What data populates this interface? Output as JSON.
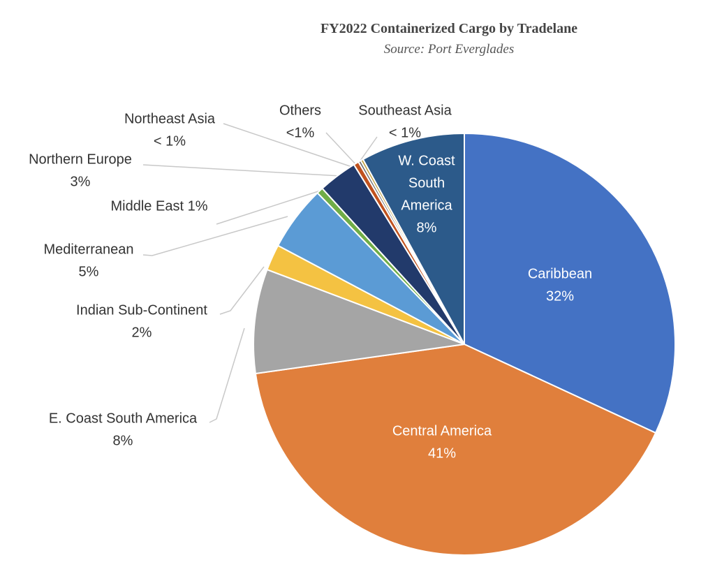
{
  "chart_data": {
    "type": "pie",
    "title": "FY2022 Containerized Cargo by Tradelane",
    "subtitle": "Source: Port Everglades",
    "slices": [
      {
        "name": "Caribbean",
        "value": 32,
        "label": "32%",
        "color": "#4472C4",
        "label_position": "inside"
      },
      {
        "name": "Central America",
        "value": 41,
        "label": "41%",
        "color": "#E07F3C",
        "label_position": "inside"
      },
      {
        "name": "E. Coast South America",
        "value": 8,
        "label": "8%",
        "color": "#A5A5A5",
        "label_position": "outside"
      },
      {
        "name": "Indian Sub-Continent",
        "value": 2,
        "label": "2%",
        "color": "#F4C242",
        "label_position": "outside"
      },
      {
        "name": "Mediterranean",
        "value": 5,
        "label": "5%",
        "color": "#5B9BD5",
        "label_position": "outside"
      },
      {
        "name": "Middle East",
        "value": 0.5,
        "label": "1%",
        "color": "#70AD47",
        "label_position": "outside"
      },
      {
        "name": "Northern Europe",
        "value": 3,
        "label": "3%",
        "color": "#223A6B",
        "label_position": "outside"
      },
      {
        "name": "Northeast Asia",
        "value": 0.4,
        "label": "< 1%",
        "color": "#C0521E",
        "label_position": "outside"
      },
      {
        "name": "Others",
        "value": 0.2,
        "label": "<1%",
        "color": "#6E6E6E",
        "label_position": "outside"
      },
      {
        "name": "Southeast Asia",
        "value": 0.2,
        "label": "< 1%",
        "color": "#BFA040",
        "label_position": "outside"
      },
      {
        "name": "W. Coast South America",
        "value": 8,
        "label": "8%",
        "color": "#2C5A8A",
        "label_position": "inside"
      }
    ],
    "start_angle_deg": 0,
    "direction": "clockwise",
    "legend": "none"
  }
}
